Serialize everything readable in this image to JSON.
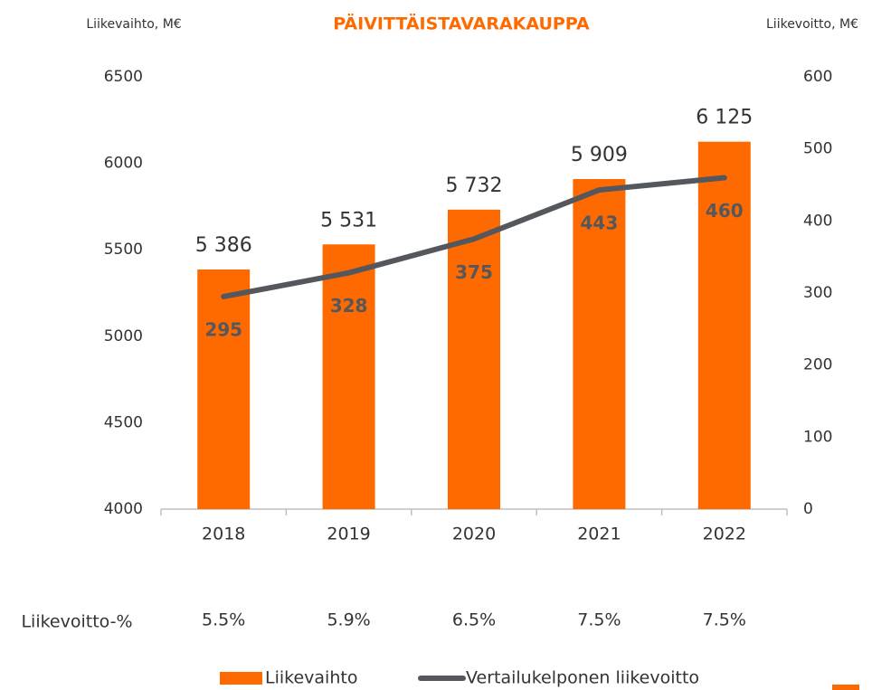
{
  "chart_data": {
    "type": "bar",
    "title": "PÄIVITTÄISTAVARAKAUPPA",
    "y_axis_label": "Liikevaihto, M€",
    "y2_axis_label": "Liikevoitto, M€",
    "categories": [
      "2018",
      "2019",
      "2020",
      "2021",
      "2022"
    ],
    "series": [
      {
        "name": "Liikevaihto",
        "type": "bar",
        "color": "#ff6a00",
        "values": [
          5386,
          5531,
          5732,
          5909,
          6125
        ],
        "value_labels": [
          "5 386",
          "5 531",
          "5 732",
          "5 909",
          "6 125"
        ]
      },
      {
        "name": "Vertailukelponen liikevoitto",
        "type": "line",
        "axis": "y2",
        "color": "#54585d",
        "values": [
          295,
          328,
          375,
          443,
          460
        ]
      }
    ],
    "ylim": [
      4000,
      6500
    ],
    "yticks": [
      4000,
      4500,
      5000,
      5500,
      6000,
      6500
    ],
    "y2lim": [
      0,
      600
    ],
    "y2ticks": [
      0,
      100,
      200,
      300,
      400,
      500,
      600
    ],
    "margin_row": {
      "label": "Liikevoitto-%",
      "values": [
        "5.5%",
        "5.9%",
        "6.5%",
        "7.5%",
        "7.5%"
      ]
    },
    "legend": "bottom"
  }
}
